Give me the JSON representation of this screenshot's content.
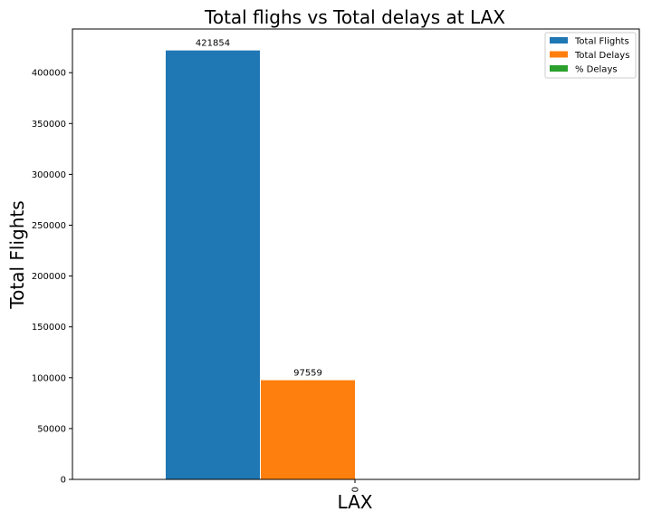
{
  "chart_data": {
    "type": "bar",
    "title": "Total flighs vs Total delays at LAX",
    "xlabel": "LAX",
    "ylabel": "Total Flights",
    "categories": [
      "0"
    ],
    "series": [
      {
        "name": "Total Flights",
        "values": [
          421854
        ],
        "color": "#1f77b4",
        "label": "421854"
      },
      {
        "name": "Total Delays",
        "values": [
          97559
        ],
        "color": "#ff7f0e",
        "label": "97559"
      },
      {
        "name": "% Delays",
        "values": [
          23.13
        ],
        "color": "#2ca02c",
        "label": ""
      }
    ],
    "yticks": [
      0,
      50000,
      100000,
      150000,
      200000,
      250000,
      300000,
      350000,
      400000
    ],
    "ylim": [
      0,
      442947
    ],
    "grid": false,
    "legend": "upper-right"
  }
}
